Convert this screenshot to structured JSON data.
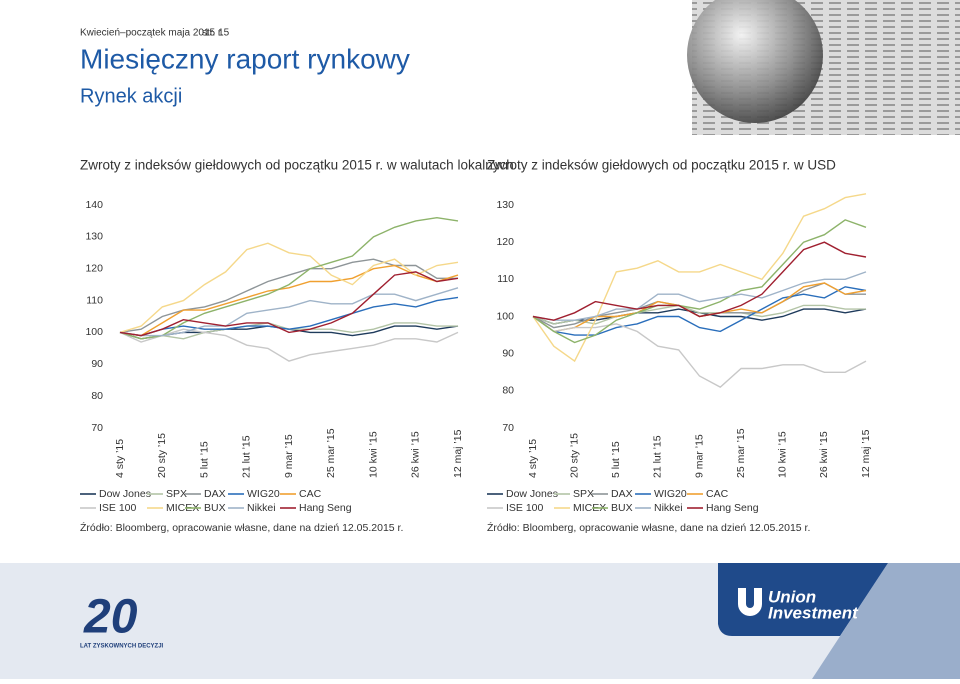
{
  "header": {
    "date": "Kwiecień–początek maja 2015 r.",
    "page": "str. 15",
    "title": "Miesięczny raport rynkowy",
    "subtitle": "Rynek akcji"
  },
  "chart_data": [
    {
      "type": "line",
      "title": "Zwroty z indeksów giełdowych od początku 2015 r. w walutach lokalnych",
      "categories": [
        "4 sty ’15",
        null,
        "20 sty ’15",
        null,
        "5 lut ’15",
        null,
        "21 lut ’15",
        null,
        "9 mar ’15",
        null,
        "25 mar ’15",
        null,
        "10 kwi ’15",
        null,
        "26 kwi ’15",
        null,
        "12 maj ’15"
      ],
      "ylim": [
        70,
        140
      ],
      "yticks": [
        70,
        80,
        90,
        100,
        110,
        120,
        130,
        140
      ],
      "series": [
        {
          "name": "Dow Jones",
          "color": "#1f3b5c",
          "values": [
            100,
            98,
            99,
            100,
            100,
            101,
            101,
            102,
            101,
            100,
            100,
            99,
            100,
            102,
            102,
            101,
            102
          ]
        },
        {
          "name": "SPX",
          "color": "#b3c4a6",
          "values": [
            100,
            98,
            99,
            98,
            100,
            101,
            102,
            103,
            101,
            101,
            101,
            100,
            101,
            103,
            103,
            102,
            102
          ]
        },
        {
          "name": "DAX",
          "color": "#8e9598",
          "values": [
            100,
            101,
            105,
            107,
            108,
            110,
            113,
            116,
            118,
            120,
            120,
            122,
            123,
            121,
            121,
            117,
            117
          ]
        },
        {
          "name": "WIG20",
          "color": "#2a6ebb",
          "values": [
            100,
            99,
            101,
            102,
            101,
            101,
            102,
            102,
            101,
            102,
            104,
            106,
            108,
            109,
            108,
            110,
            111
          ]
        },
        {
          "name": "CAC",
          "color": "#f0a030",
          "values": [
            100,
            99,
            103,
            107,
            107,
            109,
            111,
            113,
            114,
            116,
            116,
            117,
            120,
            121,
            118,
            116,
            118
          ]
        },
        {
          "name": "ISE 100",
          "color": "#c8c8c8",
          "values": [
            100,
            97,
            99,
            101,
            100,
            99,
            96,
            95,
            91,
            93,
            94,
            95,
            96,
            98,
            98,
            97,
            100
          ]
        },
        {
          "name": "MICEX",
          "color": "#f5d88a",
          "values": [
            100,
            102,
            108,
            110,
            115,
            119,
            126,
            128,
            125,
            124,
            118,
            115,
            121,
            123,
            118,
            121,
            122
          ]
        },
        {
          "name": "BUX",
          "color": "#8db36a",
          "values": [
            100,
            98,
            99,
            103,
            106,
            108,
            110,
            112,
            115,
            120,
            122,
            124,
            130,
            133,
            135,
            136,
            135
          ]
        },
        {
          "name": "Nikkei",
          "color": "#9fb3c8",
          "values": [
            100,
            99,
            99,
            100,
            102,
            102,
            106,
            107,
            108,
            110,
            109,
            109,
            112,
            112,
            110,
            112,
            114
          ]
        },
        {
          "name": "Hang Seng",
          "color": "#a02030",
          "values": [
            100,
            99,
            101,
            104,
            103,
            102,
            103,
            103,
            100,
            101,
            103,
            106,
            112,
            118,
            119,
            116,
            117
          ]
        }
      ],
      "source": "Źródło: Bloomberg, opracowanie własne, dane na dzień 12.05.2015 r."
    },
    {
      "type": "line",
      "title": "Zwroty z indeksów giełdowych od początku 2015 r. w USD",
      "categories": [
        "4 sty ’15",
        null,
        "20 sty ’15",
        null,
        "5 lut ’15",
        null,
        "21 lut ’15",
        null,
        "9 mar ’15",
        null,
        "25 mar ’15",
        null,
        "10 kwi ’15",
        null,
        "26 kwi ’15",
        null,
        "12 maj ’15"
      ],
      "ylim": [
        70,
        130
      ],
      "yticks": [
        70,
        80,
        90,
        100,
        110,
        120,
        130
      ],
      "series": [
        {
          "name": "Dow Jones",
          "color": "#1f3b5c",
          "values": [
            100,
            98,
            99,
            99,
            100,
            101,
            101,
            102,
            101,
            100,
            100,
            99,
            100,
            102,
            102,
            101,
            102
          ]
        },
        {
          "name": "SPX",
          "color": "#b3c4a6",
          "values": [
            100,
            98,
            99,
            98,
            100,
            101,
            102,
            103,
            101,
            101,
            101,
            100,
            101,
            103,
            103,
            102,
            102
          ]
        },
        {
          "name": "DAX",
          "color": "#8e9598",
          "values": [
            100,
            97,
            98,
            100,
            101,
            102,
            104,
            103,
            100,
            101,
            101,
            101,
            104,
            107,
            109,
            106,
            106
          ]
        },
        {
          "name": "WIG20",
          "color": "#2a6ebb",
          "values": [
            100,
            96,
            95,
            95,
            97,
            98,
            100,
            100,
            97,
            96,
            99,
            102,
            105,
            106,
            105,
            108,
            107
          ]
        },
        {
          "name": "CAC",
          "color": "#f0a030",
          "values": [
            100,
            96,
            97,
            100,
            100,
            101,
            104,
            103,
            100,
            101,
            102,
            101,
            104,
            108,
            109,
            106,
            107
          ]
        },
        {
          "name": "ISE 100",
          "color": "#c8c8c8",
          "values": [
            100,
            96,
            97,
            97,
            98,
            96,
            92,
            91,
            84,
            81,
            86,
            86,
            87,
            87,
            85,
            85,
            88
          ]
        },
        {
          "name": "MICEX",
          "color": "#f5d88a",
          "values": [
            100,
            92,
            88,
            99,
            112,
            113,
            115,
            112,
            112,
            114,
            112,
            110,
            117,
            127,
            129,
            132,
            133
          ]
        },
        {
          "name": "BUX",
          "color": "#8db36a",
          "values": [
            100,
            96,
            93,
            95,
            99,
            101,
            103,
            103,
            102,
            104,
            107,
            108,
            114,
            120,
            122,
            126,
            124
          ]
        },
        {
          "name": "Nikkei",
          "color": "#9fb3c8",
          "values": [
            100,
            99,
            99,
            100,
            102,
            102,
            106,
            106,
            104,
            105,
            106,
            105,
            107,
            109,
            110,
            110,
            112
          ]
        },
        {
          "name": "Hang Seng",
          "color": "#a02030",
          "values": [
            100,
            99,
            101,
            104,
            103,
            102,
            103,
            103,
            100,
            101,
            103,
            106,
            112,
            118,
            120,
            117,
            116
          ]
        }
      ],
      "source": "Źródło: Bloomberg, opracowanie własne, dane na dzień 12.05.2015 r."
    }
  ],
  "logo": {
    "anniversary": "20",
    "tagline": "LAT ZYSKOWNYCH DECYZJI",
    "brand1": "Union",
    "brand2": "Investment"
  }
}
